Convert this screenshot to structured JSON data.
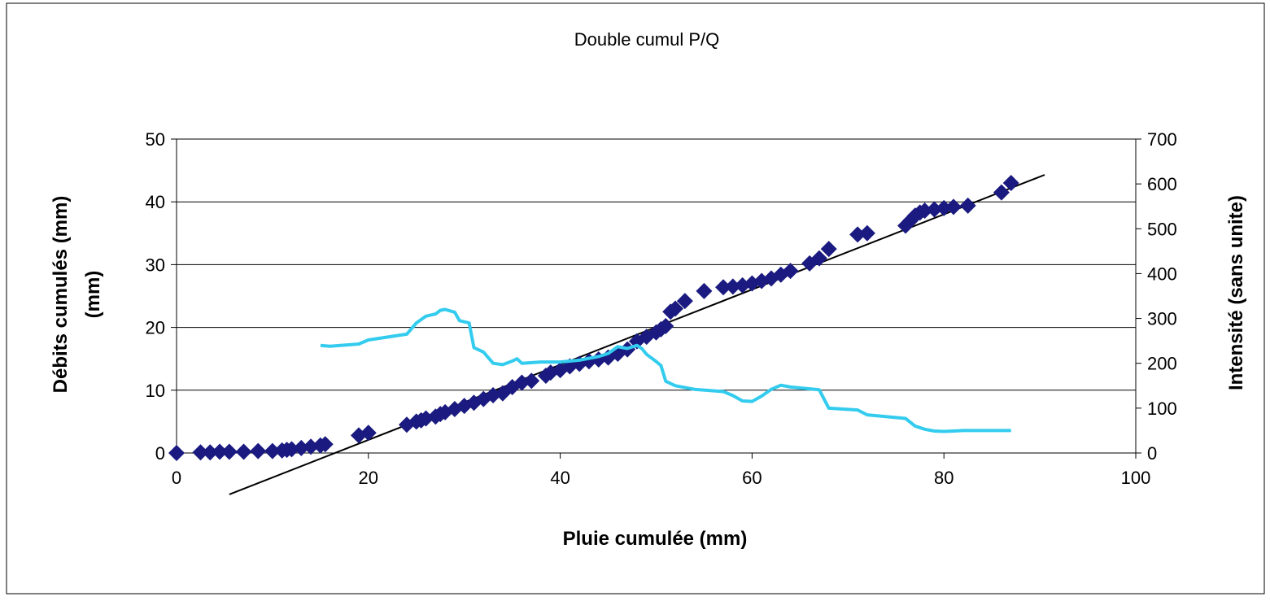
{
  "chart_data": {
    "type": "scatter",
    "title": "Double cumul P/Q",
    "xlabel": "Pluie cumulée (mm)",
    "ylabel": "Débits cumulés (mm)\n(mm)",
    "ylabel_lines": [
      "Débits cumulés (mm)",
      "(mm)"
    ],
    "y2label": "Intensité (sans unite)",
    "xlim": [
      0,
      100
    ],
    "ylim": [
      0,
      50
    ],
    "y2lim": [
      0,
      700
    ],
    "x_ticks": [
      "0",
      "20",
      "40",
      "60",
      "80",
      "100"
    ],
    "y_ticks": [
      "0",
      "10",
      "20",
      "30",
      "40",
      "50"
    ],
    "y2_ticks": [
      "0",
      "100",
      "200",
      "300",
      "400",
      "500",
      "600",
      "700"
    ],
    "grid": "horizontal",
    "legend": "none",
    "colors": {
      "cumul_points": "#1a1a80",
      "intensity_line": "#33ccee",
      "trend_line": "#000000",
      "grid": "#000000"
    },
    "series": [
      {
        "kind": "scatter",
        "axis": "left",
        "points": [
          [
            0,
            0
          ],
          [
            2.5,
            0.1
          ],
          [
            3.5,
            0.1
          ],
          [
            4.5,
            0.2
          ],
          [
            5.5,
            0.2
          ],
          [
            7,
            0.2
          ],
          [
            8.5,
            0.3
          ],
          [
            10,
            0.3
          ],
          [
            11,
            0.4
          ],
          [
            11.5,
            0.5
          ],
          [
            12,
            0.6
          ],
          [
            13,
            0.8
          ],
          [
            14,
            1.0
          ],
          [
            15,
            1.2
          ],
          [
            15.5,
            1.4
          ],
          [
            19,
            2.8
          ],
          [
            20,
            3.2
          ],
          [
            24,
            4.5
          ],
          [
            25,
            5.0
          ],
          [
            25.5,
            5.2
          ],
          [
            26,
            5.5
          ],
          [
            27,
            5.8
          ],
          [
            27.5,
            6.2
          ],
          [
            28,
            6.5
          ],
          [
            29,
            7.0
          ],
          [
            30,
            7.5
          ],
          [
            31,
            8.0
          ],
          [
            32,
            8.6
          ],
          [
            33,
            9.2
          ],
          [
            34,
            9.5
          ],
          [
            35,
            10.5
          ],
          [
            36,
            11.2
          ],
          [
            37,
            11.5
          ],
          [
            38.5,
            12.3
          ],
          [
            39,
            12.8
          ],
          [
            40,
            13.2
          ],
          [
            41,
            13.8
          ],
          [
            42,
            14.2
          ],
          [
            43,
            14.6
          ],
          [
            44,
            14.9
          ],
          [
            45,
            15.2
          ],
          [
            46,
            15.8
          ],
          [
            47,
            16.5
          ],
          [
            48,
            17.8
          ],
          [
            49,
            18.5
          ],
          [
            50,
            19.2
          ],
          [
            50.5,
            19.7
          ],
          [
            51,
            20.2
          ],
          [
            51.5,
            22.5
          ],
          [
            52,
            23.0
          ],
          [
            53,
            24.2
          ],
          [
            55,
            25.8
          ],
          [
            57,
            26.4
          ],
          [
            58,
            26.5
          ],
          [
            59,
            26.7
          ],
          [
            60,
            27.0
          ],
          [
            61,
            27.4
          ],
          [
            62,
            27.8
          ],
          [
            63,
            28.4
          ],
          [
            64,
            29.0
          ],
          [
            66,
            30.2
          ],
          [
            67,
            31.0
          ],
          [
            68,
            32.5
          ],
          [
            71,
            34.8
          ],
          [
            72,
            35.0
          ],
          [
            76,
            36.2
          ],
          [
            76.5,
            37.0
          ],
          [
            77,
            37.8
          ],
          [
            77.5,
            38.3
          ],
          [
            78,
            38.6
          ],
          [
            79,
            38.8
          ],
          [
            80,
            39.0
          ],
          [
            81,
            39.2
          ],
          [
            82.5,
            39.4
          ],
          [
            86,
            41.5
          ],
          [
            87,
            43.0
          ]
        ]
      },
      {
        "kind": "line",
        "axis": "right",
        "points": [
          [
            15,
            240
          ],
          [
            16,
            238
          ],
          [
            19,
            243
          ],
          [
            20,
            252
          ],
          [
            24,
            265
          ],
          [
            25,
            290
          ],
          [
            26,
            305
          ],
          [
            27,
            310
          ],
          [
            27.5,
            318
          ],
          [
            28,
            320
          ],
          [
            29,
            314
          ],
          [
            29.5,
            295
          ],
          [
            30.5,
            290
          ],
          [
            31,
            235
          ],
          [
            32,
            225
          ],
          [
            33,
            200
          ],
          [
            34,
            197
          ],
          [
            35,
            205
          ],
          [
            35.5,
            210
          ],
          [
            36,
            200
          ],
          [
            38,
            203
          ],
          [
            40,
            203
          ],
          [
            42,
            207
          ],
          [
            44,
            215
          ],
          [
            45,
            222
          ],
          [
            46,
            237
          ],
          [
            47,
            233
          ],
          [
            48,
            240
          ],
          [
            48.5,
            233
          ],
          [
            49,
            220
          ],
          [
            50,
            204
          ],
          [
            50.5,
            195
          ],
          [
            51,
            160
          ],
          [
            52,
            150
          ],
          [
            54,
            142
          ],
          [
            57,
            137
          ],
          [
            58,
            128
          ],
          [
            59,
            116
          ],
          [
            60,
            115
          ],
          [
            61,
            127
          ],
          [
            62,
            142
          ],
          [
            63,
            151
          ],
          [
            64,
            147
          ],
          [
            66,
            143
          ],
          [
            67,
            141
          ],
          [
            68,
            100
          ],
          [
            71,
            96
          ],
          [
            72,
            85
          ],
          [
            76,
            77
          ],
          [
            77,
            60
          ],
          [
            78,
            53
          ],
          [
            79,
            49
          ],
          [
            80,
            48
          ],
          [
            81,
            49
          ],
          [
            82,
            50
          ],
          [
            84,
            50
          ],
          [
            86,
            50
          ],
          [
            87,
            50
          ]
        ]
      },
      {
        "kind": "trend",
        "axis": "left",
        "points": [
          [
            5.5,
            -6.6
          ],
          [
            90.5,
            44.3
          ]
        ]
      }
    ]
  }
}
